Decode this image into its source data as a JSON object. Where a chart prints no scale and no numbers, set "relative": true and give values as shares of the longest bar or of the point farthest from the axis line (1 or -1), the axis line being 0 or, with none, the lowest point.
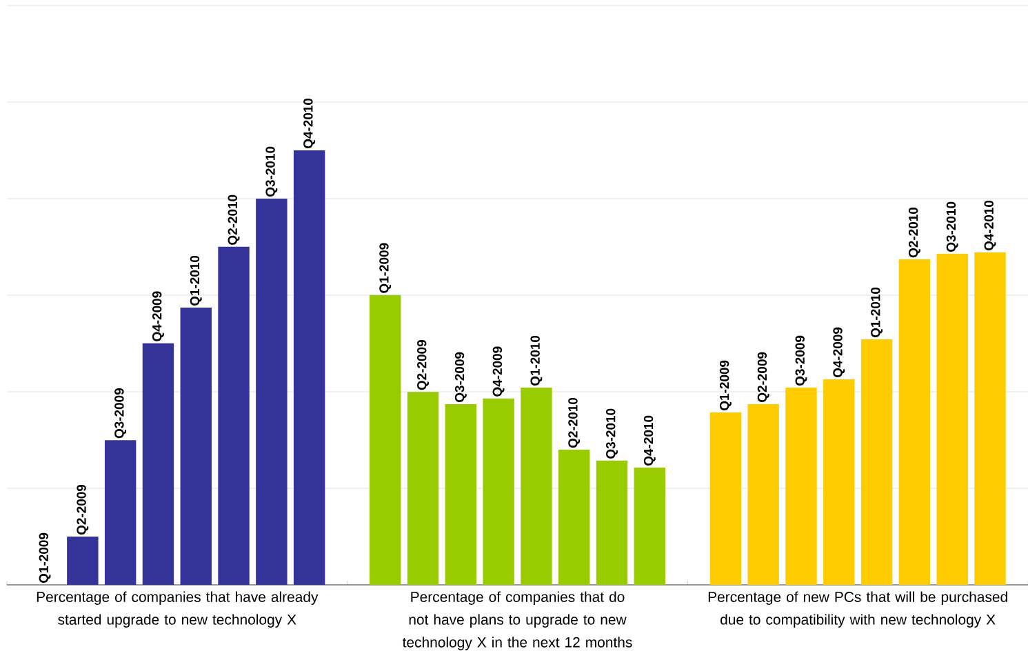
{
  "chart_data": {
    "type": "bar",
    "relative": true,
    "grid": "y",
    "categories": [
      "Percentage of companies that have already started upgrade to new technology X",
      "Percentage of companies that do not have plans to upgrade to new technology X in the next 12 months",
      "Percentage of new PCs that  will be purchased due to compatibility with new technology X"
    ],
    "series": [
      {
        "name": "Q1-2009",
        "colors": [
          "#343399",
          "#99cc00",
          "#ffcc00"
        ],
        "values": [
          0,
          0.667,
          0.397
        ]
      },
      {
        "name": "Q2-2009",
        "colors": [
          "#343399",
          "#99cc00",
          "#ffcc00"
        ],
        "values": [
          0.111,
          0.444,
          0.416
        ]
      },
      {
        "name": "Q3-2009",
        "colors": [
          "#343399",
          "#99cc00",
          "#ffcc00"
        ],
        "values": [
          0.333,
          0.416,
          0.454
        ]
      },
      {
        "name": "Q4-2009",
        "colors": [
          "#343399",
          "#99cc00",
          "#ffcc00"
        ],
        "values": [
          0.556,
          0.429,
          0.473
        ]
      },
      {
        "name": "Q1-2010",
        "colors": [
          "#343399",
          "#99cc00",
          "#ffcc00"
        ],
        "values": [
          0.638,
          0.454,
          0.565
        ]
      },
      {
        "name": "Q2-2010",
        "colors": [
          "#343399",
          "#99cc00",
          "#ffcc00"
        ],
        "values": [
          0.778,
          0.311,
          0.749
        ]
      },
      {
        "name": "Q3-2010",
        "colors": [
          "#343399",
          "#99cc00",
          "#ffcc00"
        ],
        "values": [
          0.889,
          0.286,
          0.762
        ]
      },
      {
        "name": "Q4-2010",
        "colors": [
          "#343399",
          "#99cc00",
          "#ffcc00"
        ],
        "values": [
          1,
          0.27,
          0.765
        ]
      }
    ]
  }
}
